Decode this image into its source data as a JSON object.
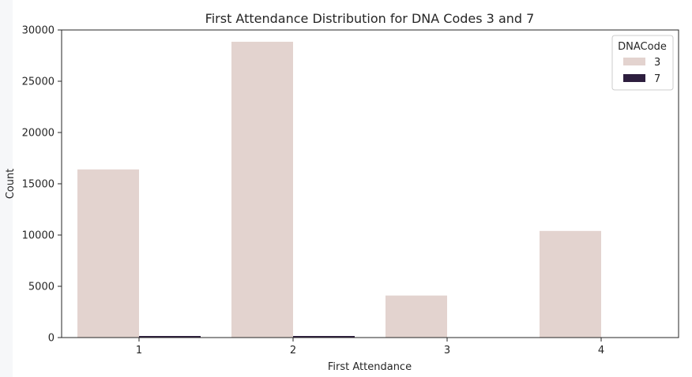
{
  "chart_data": {
    "type": "bar",
    "title": "First Attendance Distribution for DNA Codes 3 and 7",
    "xlabel": "First Attendance",
    "ylabel": "Count",
    "categories": [
      "1",
      "2",
      "3",
      "4"
    ],
    "series": [
      {
        "name": "3",
        "color": "#e3d3cf",
        "values": [
          16400,
          28850,
          4100,
          10400
        ]
      },
      {
        "name": "7",
        "color": "#2d1e3e",
        "values": [
          100,
          100,
          0,
          0
        ]
      }
    ],
    "ylim": [
      0,
      30000
    ],
    "yticks": [
      "0",
      "5000",
      "10000",
      "15000",
      "20000",
      "25000",
      "30000"
    ],
    "legend": {
      "title": "DNACode",
      "placement": "top-right"
    },
    "grid": false
  }
}
